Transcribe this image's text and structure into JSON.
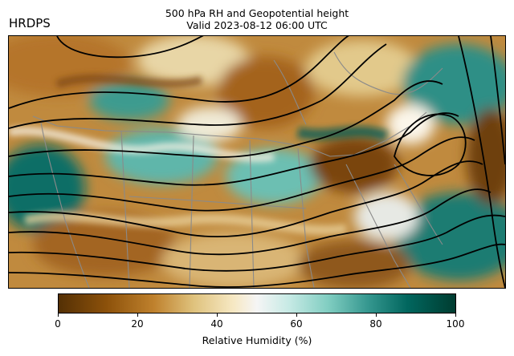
{
  "model_label": "HRDPS",
  "title": {
    "line1": "500 hPa RH and Geopotential height",
    "line2": "Valid 2023-08-12 06:00 UTC"
  },
  "colorbar": {
    "label": "Relative Humidity (%)",
    "ticks": [
      "0",
      "20",
      "40",
      "60",
      "80",
      "100"
    ],
    "range": [
      0,
      100
    ],
    "colormap": "BrBG",
    "colors": [
      "#543005",
      "#8c510a",
      "#bf812d",
      "#dfc27d",
      "#f6e8c3",
      "#f5f5f5",
      "#c7eae5",
      "#80cdc1",
      "#35978f",
      "#01665e",
      "#003c30"
    ]
  },
  "map": {
    "field": "relative humidity (shaded)",
    "contours": "500 hPa geopotential height (black lines)",
    "borders_color": "#808080",
    "contour_color": "#000000"
  }
}
